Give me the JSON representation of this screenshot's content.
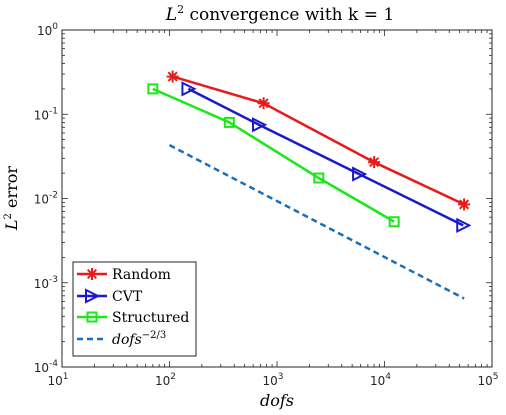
{
  "chart_data": {
    "type": "line",
    "title_prefix": "L",
    "title_sup": "2",
    "title_suffix": " convergence with k = 1",
    "xlabel": "dofs",
    "ylabel_prefix": "L",
    "ylabel_sup": "2",
    "ylabel_suffix": " error",
    "xscale": "log",
    "yscale": "log",
    "xlim": [
      10,
      100000
    ],
    "ylim": [
      0.0001,
      1
    ],
    "grid": false,
    "legend_position": "bottom-left",
    "x_ticks": [
      {
        "value": 10,
        "base": "10",
        "exp": "1"
      },
      {
        "value": 100,
        "base": "10",
        "exp": "2"
      },
      {
        "value": 1000,
        "base": "10",
        "exp": "3"
      },
      {
        "value": 10000,
        "base": "10",
        "exp": "4"
      },
      {
        "value": 100000,
        "base": "10",
        "exp": "5"
      }
    ],
    "y_ticks": [
      {
        "value": 0.0001,
        "base": "10",
        "exp": "-4"
      },
      {
        "value": 0.001,
        "base": "10",
        "exp": "-3"
      },
      {
        "value": 0.01,
        "base": "10",
        "exp": "-2"
      },
      {
        "value": 0.1,
        "base": "10",
        "exp": "-1"
      },
      {
        "value": 1,
        "base": "10",
        "exp": "0"
      }
    ],
    "series": [
      {
        "name": "Random",
        "color": "#e81a1a",
        "marker": "asterisk",
        "dashed": false,
        "x": [
          107,
          750,
          8000,
          55000
        ],
        "y": [
          0.28,
          0.135,
          0.027,
          0.0085
        ]
      },
      {
        "name": "CVT",
        "color": "#1a1acc",
        "marker": "triangle-right",
        "dashed": false,
        "x": [
          150,
          680,
          5800,
          54000
        ],
        "y": [
          0.2,
          0.075,
          0.0195,
          0.0048
        ]
      },
      {
        "name": "Structured",
        "color": "#1ae81a",
        "marker": "square",
        "dashed": false,
        "x": [
          70,
          360,
          2450,
          12300
        ],
        "y": [
          0.2,
          0.08,
          0.0175,
          0.0053
        ]
      },
      {
        "name_base": "dofs",
        "name_sup": "−2/3",
        "color": "#1a6fb8",
        "marker": "none",
        "dashed": true,
        "x": [
          100,
          55000
        ],
        "y": [
          0.043,
          0.00065
        ]
      }
    ]
  }
}
